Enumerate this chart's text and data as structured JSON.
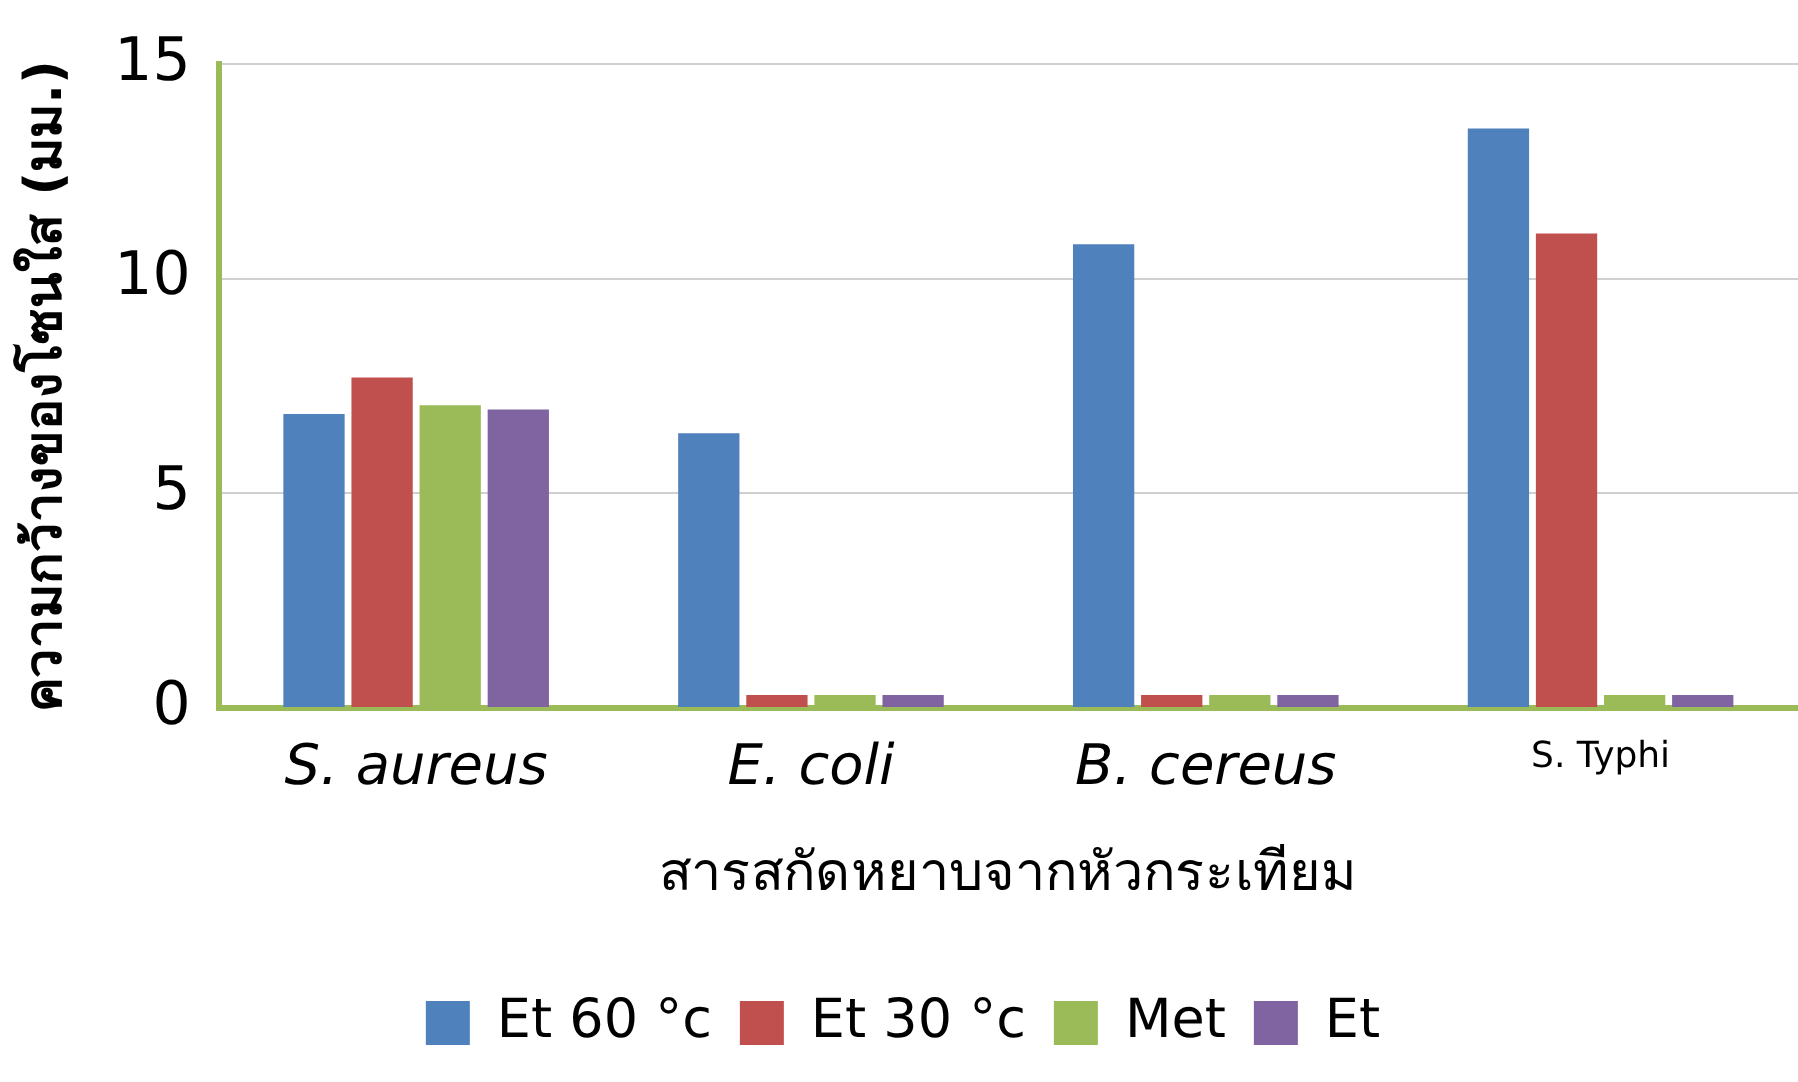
{
  "chart_data": {
    "type": "bar",
    "xlabel": "สารสกัดหยาบจากหัวกระเทียม",
    "ylabel": "ความกว้างของโซนใส (มม.)",
    "categories": [
      "S. aureus",
      "E. coli",
      "B. cereus",
      "S. Typhi"
    ],
    "series": [
      {
        "name": "Et 60 °c",
        "color": "#4f81bd",
        "values": [
          6.85,
          6.4,
          10.8,
          13.5
        ]
      },
      {
        "name": "Et 30 °c",
        "color": "#c0504d",
        "values": [
          7.7,
          0.3,
          0.3,
          11.05
        ]
      },
      {
        "name": "Met",
        "color": "#9bbb59",
        "values": [
          7.05,
          0.3,
          0.3,
          0.3
        ]
      },
      {
        "name": "Et",
        "color": "#8064a2",
        "values": [
          6.95,
          0.3,
          0.3,
          0.3
        ]
      }
    ],
    "ylim": [
      0,
      15
    ],
    "yticks": [
      0,
      5,
      10,
      15
    ],
    "grid": "y",
    "legend": "bottom"
  }
}
